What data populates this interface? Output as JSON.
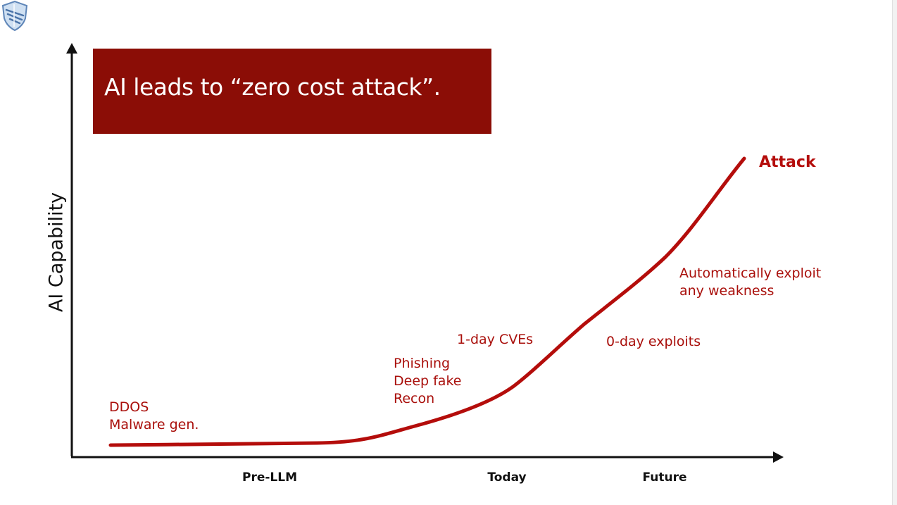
{
  "title": "AI leads to “zero cost attack”.",
  "colors": {
    "title_bg": "#8b0d06",
    "curve": "#b40d0b",
    "annotation": "#a90f0b",
    "axis": "#111111"
  },
  "axes": {
    "ylabel": "AI Capability",
    "xticks": [
      "Pre-LLM",
      "Today",
      "Future"
    ]
  },
  "curve_label": "Attack",
  "annotations": [
    {
      "lines": [
        "DDOS",
        "Malware gen."
      ]
    },
    {
      "lines": [
        "Phishing",
        "Deep fake",
        "Recon"
      ]
    },
    {
      "lines": [
        "1-day CVEs"
      ]
    },
    {
      "lines": [
        "0-day exploits"
      ]
    },
    {
      "lines": [
        "Automatically exploit",
        "any weakness"
      ]
    }
  ],
  "logo": {
    "icon": "shield-logo-icon"
  }
}
